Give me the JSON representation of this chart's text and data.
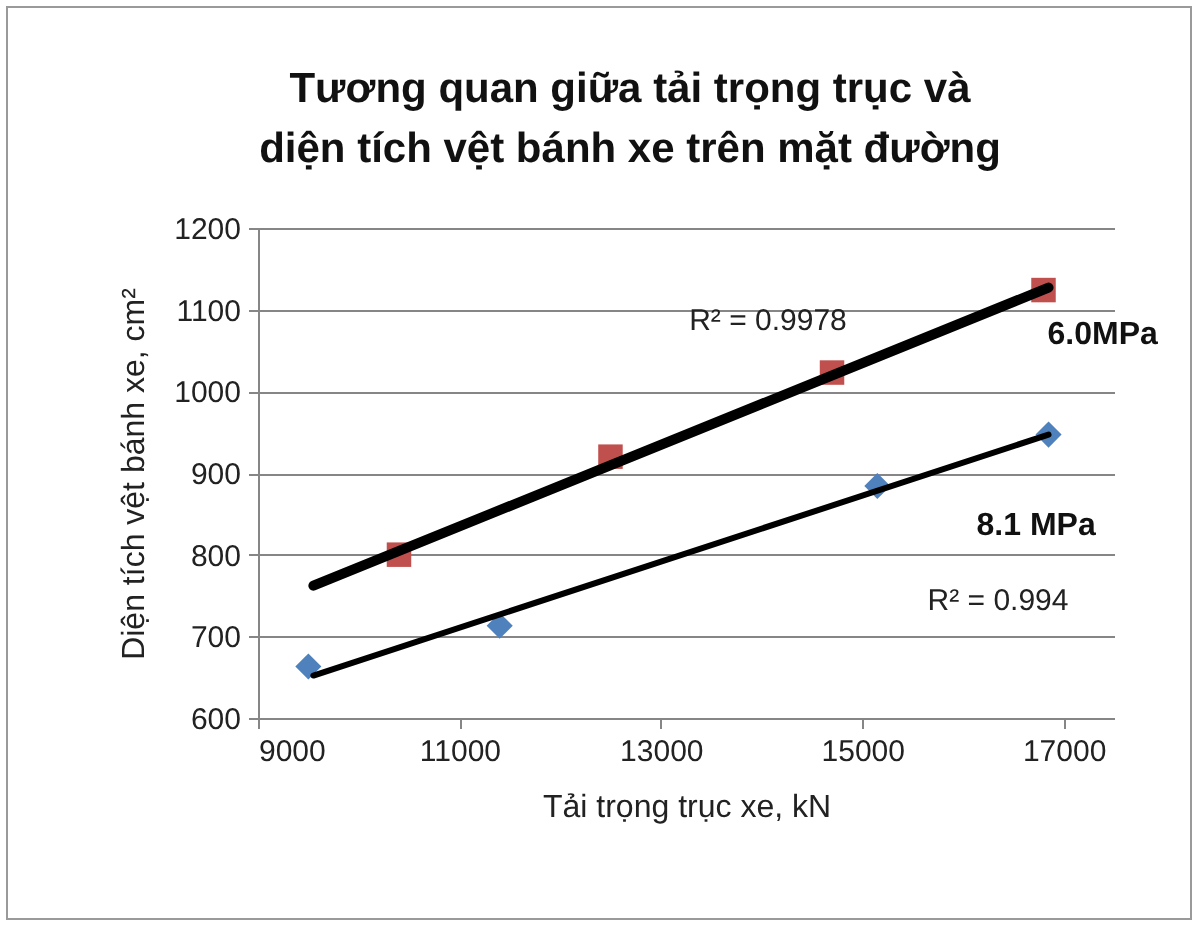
{
  "chart_data": {
    "type": "scatter",
    "title": "Tương quan giữa tải trọng trục và\ndiện tích vệt bánh xe trên mặt đường",
    "xlabel": "Tải trọng trục xe, kN",
    "ylabel": "Diện tích vệt bánh xe, cm²",
    "xlim": [
      9000,
      17500
    ],
    "xticks": [
      9000,
      11000,
      13000,
      15000,
      17000
    ],
    "ylim": [
      600,
      1200
    ],
    "yticks": [
      600,
      700,
      800,
      900,
      1000,
      1100,
      1200
    ],
    "grid": "y",
    "series": [
      {
        "name": "6.0MPa",
        "color": "#c0504d",
        "marker": "square",
        "x": [
          10400,
          12500,
          14700,
          16800
        ],
        "values": [
          800,
          920,
          1023,
          1124
        ]
      },
      {
        "name": "8.1 MPa",
        "color": "#4f81bd",
        "marker": "diamond",
        "x": [
          9500,
          11400,
          15150,
          16850
        ],
        "values": [
          663,
          713,
          884,
          947
        ]
      },
      {
        "type": "line",
        "color": "#000000",
        "x": [
          9550,
          16850
        ],
        "values": [
          762,
          1127
        ]
      },
      {
        "type": "line",
        "color": "#000000",
        "x": [
          9550,
          16850
        ],
        "values": [
          652,
          947
        ]
      }
    ],
    "annotations": [
      "R² = 0.9978",
      "R² = 0.994"
    ]
  }
}
